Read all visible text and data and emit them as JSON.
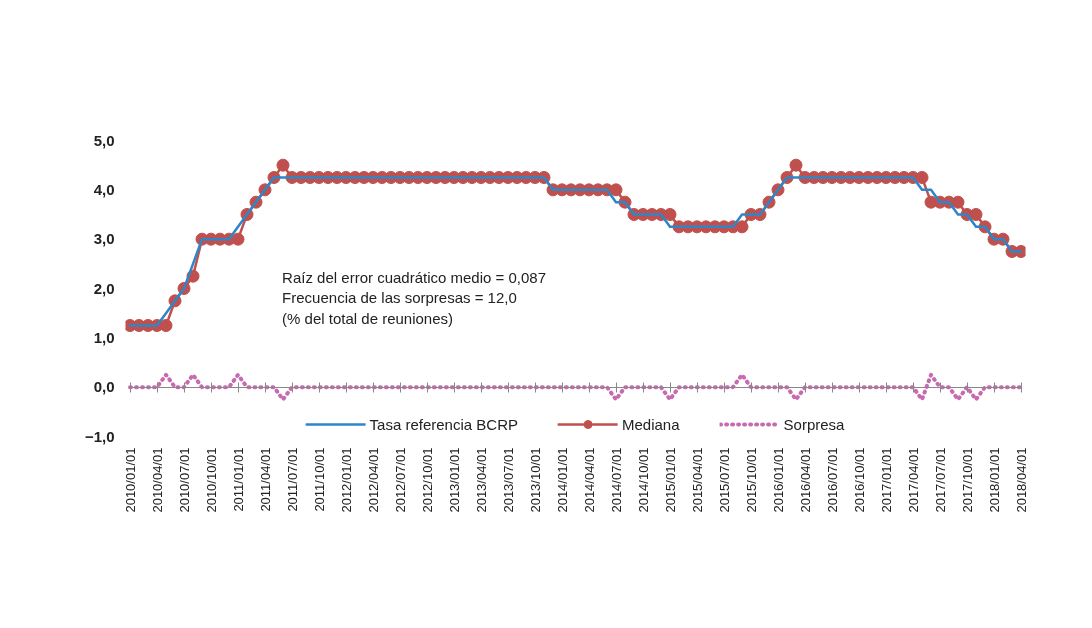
{
  "chart_data": {
    "type": "line",
    "categories": [
      "2010/01/01",
      null,
      null,
      "2010/04/01",
      null,
      null,
      "2010/07/01",
      null,
      null,
      "2010/10/01",
      null,
      null,
      "2011/01/01",
      null,
      null,
      "2011/04/01",
      null,
      null,
      "2011/07/01",
      null,
      null,
      "2011/10/01",
      null,
      null,
      "2012/01/01",
      null,
      null,
      "2012/04/01",
      null,
      null,
      "2012/07/01",
      null,
      null,
      "2012/10/01",
      null,
      null,
      "2013/01/01",
      null,
      null,
      "2013/04/01",
      null,
      null,
      "2013/07/01",
      null,
      null,
      "2013/10/01",
      null,
      null,
      "2014/01/01",
      null,
      null,
      "2014/04/01",
      null,
      null,
      "2014/07/01",
      null,
      null,
      "2014/10/01",
      null,
      null,
      "2015/01/01",
      null,
      null,
      "2015/04/01",
      null,
      null,
      "2015/07/01",
      null,
      null,
      "2015/10/01",
      null,
      null,
      "2016/01/01",
      null,
      null,
      "2016/04/01",
      null,
      null,
      "2016/07/01",
      null,
      null,
      "2016/10/01",
      null,
      null,
      "2017/01/01",
      null,
      null,
      "2017/04/01",
      null,
      null,
      "2017/07/01",
      null,
      null,
      "2017/10/01",
      null,
      null,
      "2018/01/01",
      null,
      null,
      "2018/04/01"
    ],
    "series": [
      {
        "name": "Tasa referencia BCRP",
        "color": "#2e86c8",
        "marker": "none",
        "line_style": "solid",
        "values": [
          1.25,
          1.25,
          1.25,
          1.25,
          1.5,
          1.75,
          2.0,
          2.5,
          3.0,
          3.0,
          3.0,
          3.0,
          3.25,
          3.5,
          3.75,
          4.0,
          4.25,
          4.25,
          4.25,
          4.25,
          4.25,
          4.25,
          4.25,
          4.25,
          4.25,
          4.25,
          4.25,
          4.25,
          4.25,
          4.25,
          4.25,
          4.25,
          4.25,
          4.25,
          4.25,
          4.25,
          4.25,
          4.25,
          4.25,
          4.25,
          4.25,
          4.25,
          4.25,
          4.25,
          4.25,
          4.25,
          4.25,
          4.0,
          4.0,
          4.0,
          4.0,
          4.0,
          4.0,
          4.0,
          3.75,
          3.75,
          3.5,
          3.5,
          3.5,
          3.5,
          3.25,
          3.25,
          3.25,
          3.25,
          3.25,
          3.25,
          3.25,
          3.25,
          3.5,
          3.5,
          3.5,
          3.75,
          4.0,
          4.25,
          4.25,
          4.25,
          4.25,
          4.25,
          4.25,
          4.25,
          4.25,
          4.25,
          4.25,
          4.25,
          4.25,
          4.25,
          4.25,
          4.25,
          4.0,
          4.0,
          3.75,
          3.75,
          3.5,
          3.5,
          3.25,
          3.25,
          3.0,
          3.0,
          2.75,
          2.75
        ]
      },
      {
        "name": "Mediana",
        "color": "#c0504d",
        "marker": "circle",
        "line_style": "solid",
        "values": [
          1.25,
          1.25,
          1.25,
          1.25,
          1.25,
          1.75,
          2.0,
          2.25,
          3.0,
          3.0,
          3.0,
          3.0,
          3.0,
          3.5,
          3.75,
          4.0,
          4.25,
          4.5,
          4.25,
          4.25,
          4.25,
          4.25,
          4.25,
          4.25,
          4.25,
          4.25,
          4.25,
          4.25,
          4.25,
          4.25,
          4.25,
          4.25,
          4.25,
          4.25,
          4.25,
          4.25,
          4.25,
          4.25,
          4.25,
          4.25,
          4.25,
          4.25,
          4.25,
          4.25,
          4.25,
          4.25,
          4.25,
          4.0,
          4.0,
          4.0,
          4.0,
          4.0,
          4.0,
          4.0,
          4.0,
          3.75,
          3.5,
          3.5,
          3.5,
          3.5,
          3.5,
          3.25,
          3.25,
          3.25,
          3.25,
          3.25,
          3.25,
          3.25,
          3.25,
          3.5,
          3.5,
          3.75,
          4.0,
          4.25,
          4.5,
          4.25,
          4.25,
          4.25,
          4.25,
          4.25,
          4.25,
          4.25,
          4.25,
          4.25,
          4.25,
          4.25,
          4.25,
          4.25,
          4.25,
          3.75,
          3.75,
          3.75,
          3.75,
          3.5,
          3.5,
          3.25,
          3.0,
          3.0,
          2.75,
          2.75
        ]
      },
      {
        "name": "Sorpresa",
        "color": "#c86ab0",
        "marker": "none",
        "line_style": "dotted",
        "values": [
          0,
          0,
          0,
          0,
          0.25,
          0,
          0,
          0.25,
          0,
          0,
          0,
          0,
          0.25,
          0,
          0,
          0,
          0,
          -0.25,
          0,
          0,
          0,
          0,
          0,
          0,
          0,
          0,
          0,
          0,
          0,
          0,
          0,
          0,
          0,
          0,
          0,
          0,
          0,
          0,
          0,
          0,
          0,
          0,
          0,
          0,
          0,
          0,
          0,
          0,
          0,
          0,
          0,
          0,
          0,
          0,
          -0.25,
          0,
          0,
          0,
          0,
          0,
          -0.25,
          0,
          0,
          0,
          0,
          0,
          0,
          0,
          0.25,
          0,
          0,
          0,
          0,
          0,
          -0.25,
          0,
          0,
          0,
          0,
          0,
          0,
          0,
          0,
          0,
          0,
          0,
          0,
          0,
          -0.25,
          0.25,
          0,
          0,
          -0.25,
          0,
          -0.25,
          0,
          0,
          0,
          0,
          0
        ]
      }
    ],
    "ylim": [
      -1,
      5
    ],
    "yticks": [
      {
        "value": -1,
        "label": "−1,0"
      },
      {
        "value": 0,
        "label": "0,0"
      },
      {
        "value": 1,
        "label": "1,0"
      },
      {
        "value": 2,
        "label": "2,0"
      },
      {
        "value": 3,
        "label": "3,0"
      },
      {
        "value": 4,
        "label": "4,0"
      },
      {
        "value": 5,
        "label": "5,0"
      }
    ],
    "legend": "bottom",
    "annotations": [
      "Raíz del error cuadrático medio = 0,087",
      "Frecuencia de las sorpresas = 12,0",
      "(% del total de reuniones)"
    ]
  }
}
